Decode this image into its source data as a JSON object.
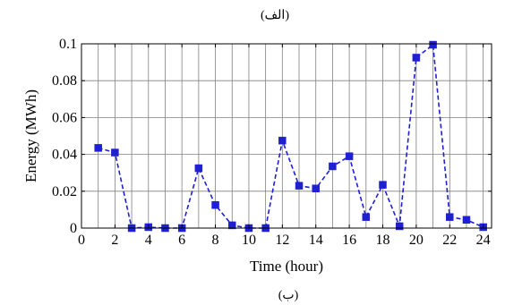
{
  "figure": {
    "top_label": "(الف)",
    "bottom_label": "(ب)"
  },
  "chart_data": {
    "type": "line",
    "title": "",
    "xlabel": "Time (hour)",
    "ylabel": "Energy (MWh)",
    "xlim": [
      0,
      24.5
    ],
    "ylim": [
      0,
      0.1
    ],
    "xticks": [
      0,
      2,
      4,
      6,
      8,
      10,
      12,
      14,
      16,
      18,
      20,
      22,
      24
    ],
    "xtick_labels": [
      "0",
      "2",
      "4",
      "6",
      "8",
      "10",
      "12",
      "14",
      "16",
      "18",
      "20",
      "22",
      "24"
    ],
    "yticks": [
      0,
      0.02,
      0.04,
      0.06,
      0.08,
      0.1
    ],
    "ytick_labels": [
      "0",
      "0.02",
      "0.04",
      "0.06",
      "0.08",
      "0.1"
    ],
    "grid": true,
    "minor_x_grid_step": 1,
    "series": [
      {
        "color": "#1f1fd6",
        "line_style": "dashed",
        "marker": "square",
        "x": [
          1,
          2,
          3,
          4,
          5,
          6,
          7,
          8,
          9,
          10,
          11,
          12,
          13,
          14,
          15,
          16,
          17,
          18,
          19,
          20,
          21,
          22,
          23,
          24
        ],
        "y": [
          0.0435,
          0.041,
          0.0,
          0.0005,
          0.0,
          0.0,
          0.0325,
          0.0125,
          0.0015,
          0.0,
          0.0,
          0.0475,
          0.023,
          0.0215,
          0.0335,
          0.039,
          0.006,
          0.0235,
          0.001,
          0.0925,
          0.0995,
          0.006,
          0.0045,
          0.0005
        ]
      }
    ]
  }
}
